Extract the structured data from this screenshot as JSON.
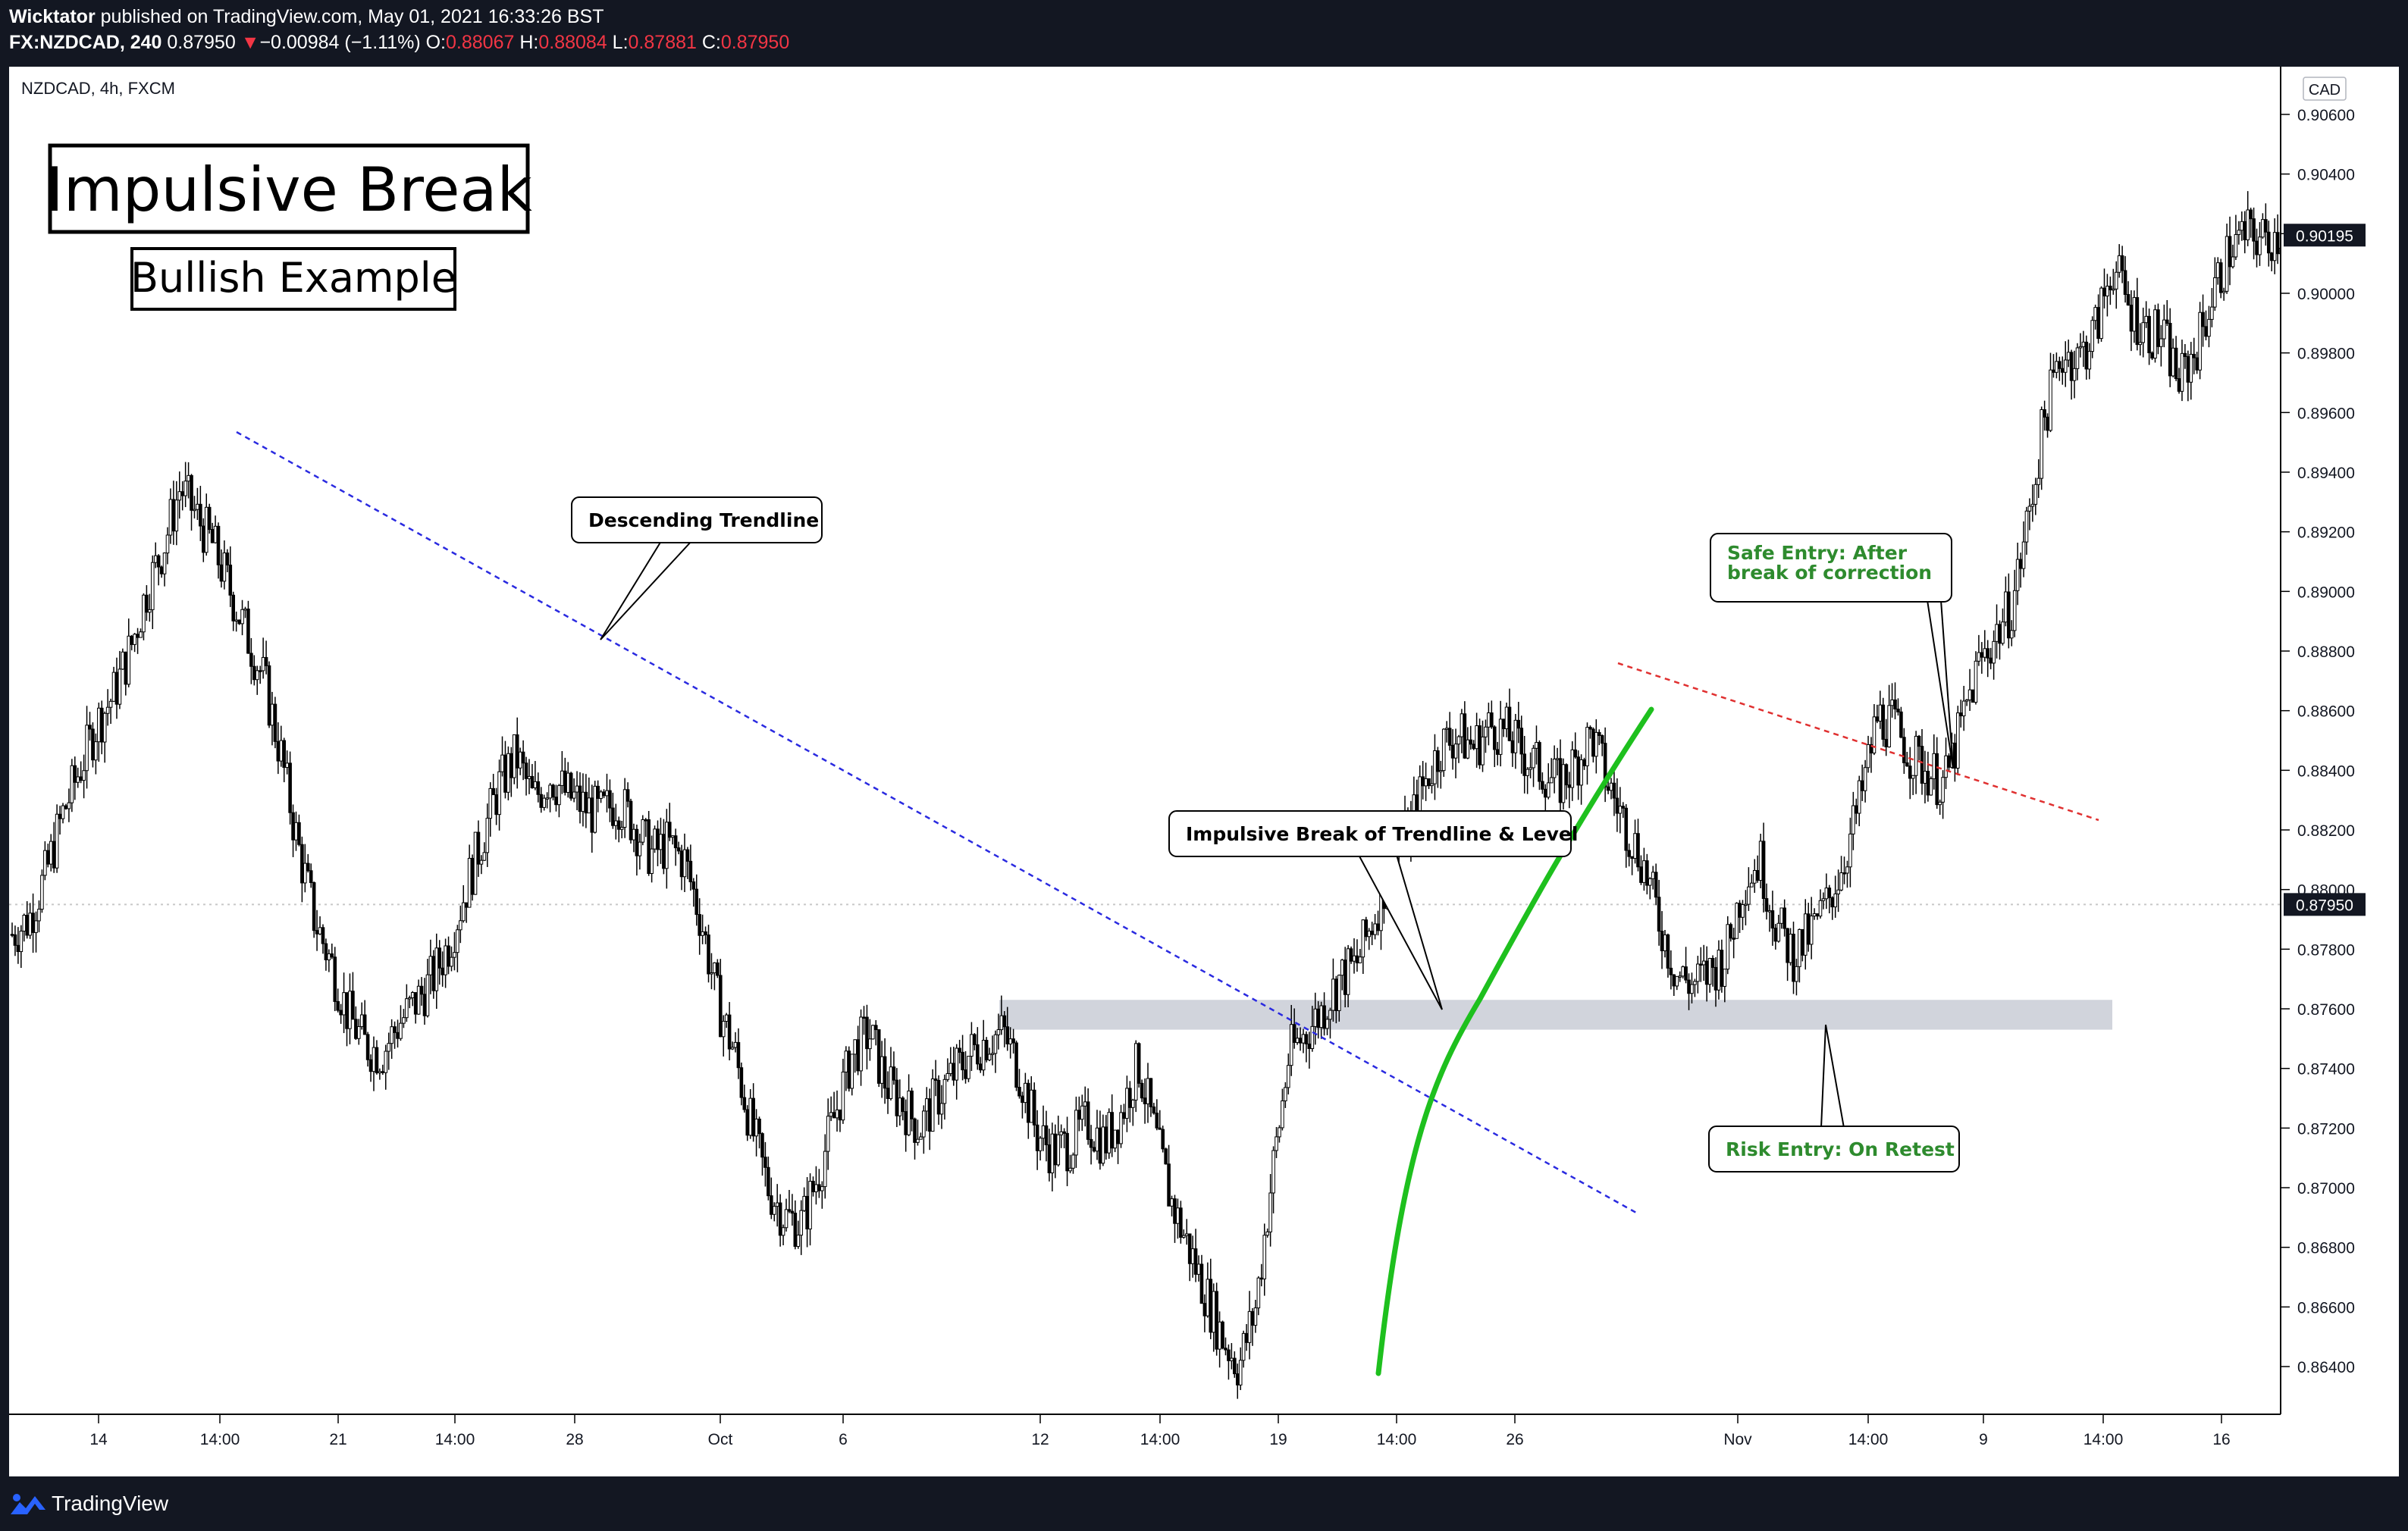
{
  "header": {
    "author": "Wicktator",
    "published": " published on TradingView.com, May 01, 2021 16:33:26 BST",
    "symbol": "FX:NZDCAD, 240",
    "last": "0.87950",
    "arrow": "▼",
    "change": "−0.00984 (−1.11%)",
    "o_label": "O:",
    "o_val": "0.88067",
    "h_label": "H:",
    "h_val": "0.88084",
    "l_label": "L:",
    "l_val": "0.87881",
    "c_label": "C:",
    "c_val": "0.87950"
  },
  "footer": {
    "brand": "TradingView"
  },
  "chart_data": {
    "type": "candlestick",
    "instrument": "NZDCAD, 4h, FXCM",
    "currency": "CAD",
    "title": "Impulsive Break",
    "subtitle": "Bullish Example",
    "ylim": [
      0.8624,
      0.9076
    ],
    "y_ticks": [
      "0.90600",
      "0.90400",
      "0.90200",
      "0.90000",
      "0.89800",
      "0.89600",
      "0.89400",
      "0.89200",
      "0.89000",
      "0.88800",
      "0.88600",
      "0.88400",
      "0.88200",
      "0.88000",
      "0.87800",
      "0.87600",
      "0.87400",
      "0.87200",
      "0.87000",
      "0.86800",
      "0.86600",
      "0.86400"
    ],
    "x_ticks": [
      "14",
      "14:00",
      "21",
      "14:00",
      "28",
      "Oct",
      "6",
      "12",
      "14:00",
      "19",
      "14:00",
      "26",
      "Nov",
      "14:00",
      "9",
      "14:00",
      "16"
    ],
    "current_price_label": "0.87950",
    "current_price": 0.8795,
    "last_marker_label": "0.90195",
    "last_marker_price": 0.90195,
    "close_path": [
      0.8785,
      0.879,
      0.8805,
      0.8825,
      0.884,
      0.8855,
      0.8865,
      0.888,
      0.89,
      0.8915,
      0.8935,
      0.8925,
      0.8915,
      0.89,
      0.8885,
      0.887,
      0.8845,
      0.8815,
      0.879,
      0.8775,
      0.8758,
      0.8748,
      0.8745,
      0.8755,
      0.8762,
      0.877,
      0.8782,
      0.88,
      0.8818,
      0.8835,
      0.8845,
      0.883,
      0.8838,
      0.8832,
      0.8828,
      0.8825,
      0.883,
      0.8822,
      0.8812,
      0.8815,
      0.881,
      0.879,
      0.8762,
      0.8745,
      0.872,
      0.87,
      0.869,
      0.8688,
      0.8705,
      0.8725,
      0.8745,
      0.8752,
      0.8735,
      0.8728,
      0.872,
      0.873,
      0.8738,
      0.8745,
      0.875,
      0.8752,
      0.8738,
      0.8718,
      0.8712,
      0.8715,
      0.8722,
      0.8715,
      0.8725,
      0.8742,
      0.8718,
      0.8695,
      0.868,
      0.8665,
      0.865,
      0.864,
      0.866,
      0.8705,
      0.8745,
      0.8752,
      0.876,
      0.877,
      0.8775,
      0.879,
      0.8808,
      0.8818,
      0.8835,
      0.8848,
      0.8852,
      0.8848,
      0.8855,
      0.8852,
      0.8845,
      0.884,
      0.8835,
      0.8842,
      0.8852,
      0.8835,
      0.8822,
      0.881,
      0.879,
      0.8772,
      0.8768,
      0.8772,
      0.8778,
      0.8802,
      0.881,
      0.8788,
      0.8778,
      0.8785,
      0.8795,
      0.881,
      0.883,
      0.8858,
      0.8855,
      0.8845,
      0.884,
      0.8835,
      0.8855,
      0.8875,
      0.8885,
      0.8895,
      0.8925,
      0.896,
      0.898,
      0.8978,
      0.8988,
      0.901,
      0.8995,
      0.8988,
      0.8985,
      0.897,
      0.8982,
      0.9,
      0.9015,
      0.902,
      0.9018,
      0.902
    ],
    "annotations": [
      {
        "text": "Descending Trendline"
      },
      {
        "text": "Impulsive Break of Trendline & Level"
      },
      {
        "text": "Safe Entry: After",
        "text2": "break of correction"
      },
      {
        "text": "Risk Entry: On Retest"
      }
    ],
    "zone": {
      "low": 0.8753,
      "high": 0.8763
    },
    "colors": {
      "bull": "#ffffff",
      "bear": "#000000",
      "trend": "#2a2ae0",
      "correction": "#e03030",
      "impulse": "#1ec01e",
      "zone": "#d1d4dc",
      "entry": "#2e8b2e"
    }
  }
}
